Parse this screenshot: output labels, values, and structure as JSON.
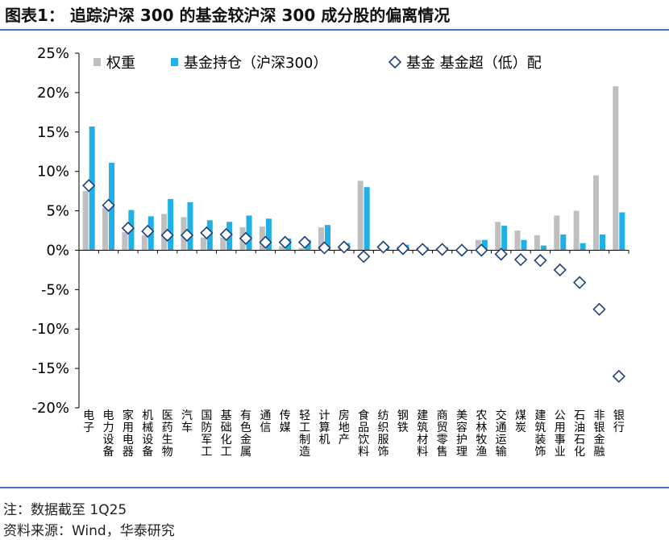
{
  "figure": {
    "title": "图表1：  追踪沪深 300 的基金较沪深 300 成分股的偏离情况",
    "note": "注：数据截至 1Q25",
    "source": "资料来源：Wind，华泰研究"
  },
  "colors": {
    "weight": "#bfbfbf",
    "fund": "#1fb0e6",
    "over": "#1f3f7a",
    "rule": "#4a72b8"
  },
  "chart_data": {
    "type": "bar",
    "categories": [
      "电子",
      "电力设备",
      "家用电器",
      "机械设备",
      "医药生物",
      "汽车",
      "国防军工",
      "基础化工",
      "有色金属",
      "通信",
      "传媒",
      "轻工制造",
      "计算机",
      "房地产",
      "食品饮料",
      "纺织服饰",
      "钢铁",
      "建筑材料",
      "商贸零售",
      "美容护理",
      "农林牧渔",
      "交通运输",
      "煤炭",
      "建筑装饰",
      "公用事业",
      "石油石化",
      "非银金融",
      "银行"
    ],
    "series": [
      {
        "name": "权重",
        "kind": "bar",
        "values": [
          7.5,
          5.4,
          2.3,
          1.9,
          4.6,
          4.2,
          1.6,
          1.6,
          2.9,
          3.0,
          0.5,
          0.3,
          2.9,
          0.5,
          8.8,
          0.0,
          0.5,
          0.4,
          0.3,
          0.1,
          1.3,
          3.6,
          2.5,
          1.9,
          4.4,
          5.0,
          9.5,
          20.8
        ]
      },
      {
        "name": "基金持仓（沪深300）",
        "kind": "bar",
        "values": [
          15.7,
          11.1,
          5.1,
          4.3,
          6.5,
          6.1,
          3.8,
          3.6,
          4.4,
          4.0,
          1.5,
          1.3,
          3.2,
          0.9,
          8.0,
          0.4,
          0.7,
          0.4,
          0.4,
          0.1,
          1.3,
          3.1,
          1.3,
          0.6,
          2.0,
          0.9,
          2.0,
          4.8
        ]
      },
      {
        "name": "基金 基金超（低）配",
        "kind": "scatter",
        "values": [
          8.2,
          5.7,
          2.8,
          2.4,
          1.9,
          1.9,
          2.2,
          2.0,
          1.5,
          1.0,
          1.0,
          1.0,
          0.3,
          0.4,
          -0.8,
          0.4,
          0.2,
          0.1,
          0.1,
          0.0,
          0.0,
          -0.5,
          -1.2,
          -1.3,
          -2.5,
          -4.1,
          -7.5,
          -16.0
        ]
      }
    ],
    "y_ticks": [
      "25%",
      "20%",
      "15%",
      "10%",
      "5%",
      "0%",
      "-5%",
      "-10%",
      "-15%",
      "-20%"
    ],
    "ylim": [
      -20,
      25
    ],
    "legend": "top",
    "grid": false
  }
}
